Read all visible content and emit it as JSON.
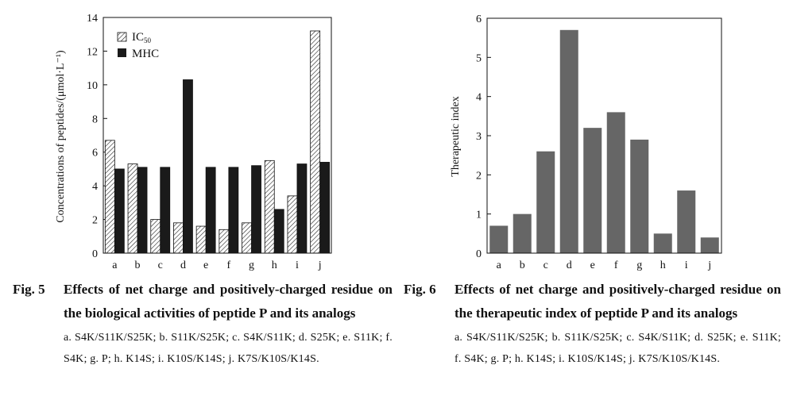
{
  "figures": [
    {
      "label": "Fig. 5",
      "caption": "Effects of net charge and positively-charged residue on the biological activities of peptide P and its analogs",
      "note": "a.  S4K/S11K/S25K;  b.  S11K/S25K;  c.  S4K/S11K;  d.  S25K;  e.  S11K;  f.  S4K;  g.  P;  h.  K14S;  i.  K10S/K14S;  j.  K7S/K10S/K14S."
    },
    {
      "label": "Fig. 6",
      "caption": "Effects of net charge and positively-charged residue on the therapeutic index of peptide P and its analogs",
      "note": "a.  S4K/S11K/S25K;  b.  S11K/S25K;  c.  S4K/S11K;  d.  S25K;  e.  S11K;  f.  S4K;  g.  P;  h.  K14S;  i.  K10S/K14S;  j.  K7S/K10S/K14S."
    }
  ],
  "chart_data": [
    {
      "type": "bar",
      "categories": [
        "a",
        "b",
        "c",
        "d",
        "e",
        "f",
        "g",
        "h",
        "i",
        "j"
      ],
      "series": [
        {
          "name": "IC50",
          "values": [
            6.7,
            5.3,
            2.0,
            1.8,
            1.6,
            1.4,
            1.8,
            5.5,
            3.4,
            13.2
          ],
          "pattern": "hatched"
        },
        {
          "name": "MHC",
          "values": [
            5.0,
            5.1,
            5.1,
            10.3,
            5.1,
            5.1,
            5.2,
            2.6,
            5.3,
            5.4
          ],
          "color": "#1a1a1a"
        }
      ],
      "xlabel": "",
      "ylabel": "Concentrations of peptides/(μmol·L⁻¹)",
      "ylim": [
        0,
        14
      ],
      "yticks": [
        "0",
        "2",
        "4",
        "6",
        "8",
        "10",
        "12",
        "14"
      ],
      "legend_position": "top-left",
      "grid": false
    },
    {
      "type": "bar",
      "categories": [
        "a",
        "b",
        "c",
        "d",
        "e",
        "f",
        "g",
        "h",
        "i",
        "j"
      ],
      "values": [
        0.7,
        1.0,
        2.6,
        5.7,
        3.2,
        3.6,
        2.9,
        0.5,
        1.6,
        0.4
      ],
      "color": "#666666",
      "xlabel": "",
      "ylabel": "Therapeutic index",
      "ylim": [
        0,
        6
      ],
      "yticks": [
        "0",
        "1",
        "2",
        "3",
        "4",
        "5",
        "6"
      ],
      "grid": false
    }
  ]
}
